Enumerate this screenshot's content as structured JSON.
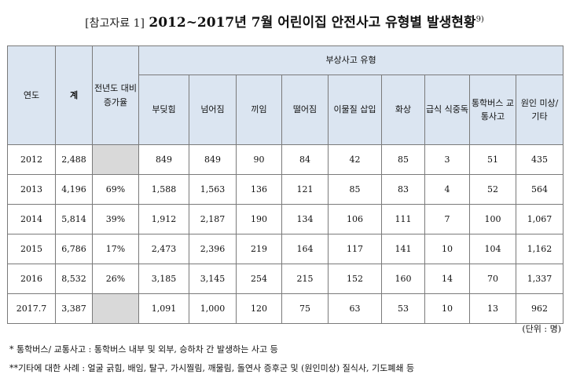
{
  "title": {
    "prefix": "[참고자료 1]",
    "text": "2012~2017년 7월 어린이집 안전사고 유형별 발생현황",
    "footnote_mark": "9)"
  },
  "table": {
    "headers": {
      "year": "연도",
      "total": "계",
      "change": "전년도 대비 증가율",
      "group": "부상사고 유형",
      "types": [
        "부딪힘",
        "넘어짐",
        "끼임",
        "떨어짐",
        "이물질 삽입",
        "화상",
        "급식 식중독",
        "통학버스 교통사고",
        "원인 미상/ 기타"
      ]
    },
    "rows": [
      {
        "year": "2012",
        "total": "2,488",
        "change": "",
        "values": [
          "849",
          "849",
          "90",
          "84",
          "42",
          "85",
          "3",
          "51",
          "435"
        ]
      },
      {
        "year": "2013",
        "total": "4,196",
        "change": "69%",
        "values": [
          "1,588",
          "1,563",
          "136",
          "121",
          "85",
          "83",
          "4",
          "52",
          "564"
        ]
      },
      {
        "year": "2014",
        "total": "5,814",
        "change": "39%",
        "values": [
          "1,912",
          "2,187",
          "190",
          "134",
          "106",
          "111",
          "7",
          "100",
          "1,067"
        ]
      },
      {
        "year": "2015",
        "total": "6,786",
        "change": "17%",
        "values": [
          "2,473",
          "2,396",
          "219",
          "164",
          "117",
          "141",
          "10",
          "104",
          "1,162"
        ]
      },
      {
        "year": "2016",
        "total": "8,532",
        "change": "26%",
        "values": [
          "3,185",
          "3,145",
          "254",
          "215",
          "152",
          "160",
          "14",
          "70",
          "1,337"
        ]
      },
      {
        "year": "2017.7",
        "total": "3,387",
        "change": "",
        "values": [
          "1,091",
          "1,000",
          "120",
          "75",
          "63",
          "53",
          "10",
          "13",
          "962"
        ]
      }
    ]
  },
  "unit": "(단위 : 명)",
  "notes": [
    "* 통학버스/ 교통사고 : 통학버스 내부 및 외부, 승하차 간 발생하는 사고 등",
    "**기타에 대한 사례 : 얼굴 긁힘, 배임, 탈구, 가시찔림, 깨물림, 돌연사 증후군 및 (원인미상) 질식사, 기도폐쇄 등"
  ]
}
